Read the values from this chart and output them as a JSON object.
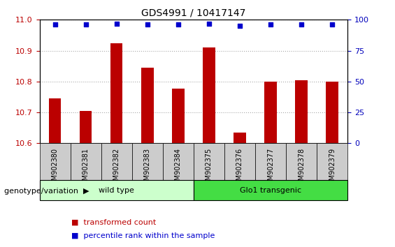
{
  "title": "GDS4991 / 10417147",
  "samples": [
    "GSM902380",
    "GSM902381",
    "GSM902382",
    "GSM902383",
    "GSM902384",
    "GSM902375",
    "GSM902376",
    "GSM902377",
    "GSM902378",
    "GSM902379"
  ],
  "transformed_count": [
    10.745,
    10.705,
    10.925,
    10.845,
    10.778,
    10.91,
    10.635,
    10.8,
    10.805,
    10.8
  ],
  "percentile_rank": [
    96,
    96,
    97,
    96,
    96,
    97,
    95,
    96,
    96,
    96
  ],
  "ylim_left": [
    10.6,
    11.0
  ],
  "ylim_right": [
    0,
    100
  ],
  "yticks_left": [
    10.6,
    10.7,
    10.8,
    10.9,
    11.0
  ],
  "yticks_right": [
    0,
    25,
    50,
    75,
    100
  ],
  "bar_color": "#bb0000",
  "dot_color": "#0000cc",
  "groups": [
    {
      "label": "wild type",
      "indices": [
        0,
        1,
        2,
        3,
        4
      ],
      "color": "#ccffcc"
    },
    {
      "label": "Glo1 transgenic",
      "indices": [
        5,
        6,
        7,
        8,
        9
      ],
      "color": "#44dd44"
    }
  ],
  "xlabel_label": "genotype/variation",
  "legend_items": [
    {
      "label": "transformed count",
      "color": "#bb0000"
    },
    {
      "label": "percentile rank within the sample",
      "color": "#0000cc"
    }
  ],
  "tick_color_left": "#bb0000",
  "tick_color_right": "#0000bb",
  "grid_color": "#aaaaaa",
  "bg_xtick": "#cccccc",
  "bar_width": 0.4
}
